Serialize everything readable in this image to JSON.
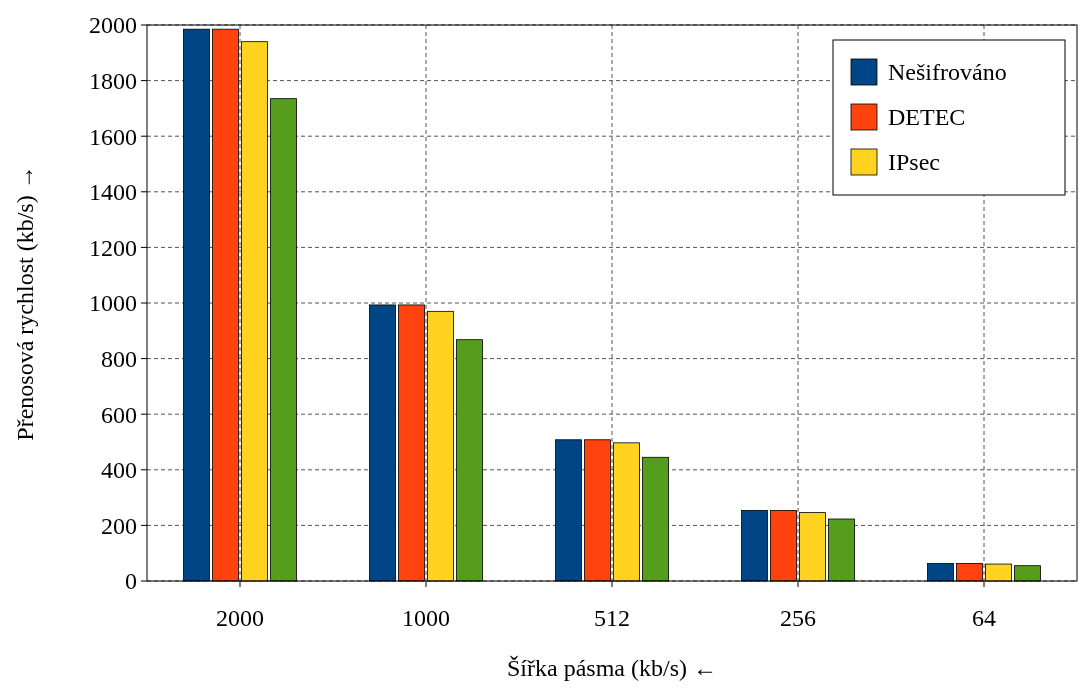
{
  "chart_data": {
    "type": "bar",
    "xlabel": "Šířka pásma (kb/s) ←",
    "ylabel": "Přenosová rychlost (kb/s) →",
    "categories": [
      "2000",
      "1000",
      "512",
      "256",
      "64"
    ],
    "series": [
      {
        "name": "Nešifrováno",
        "color": "#004586",
        "values": [
          1985,
          993,
          508,
          254,
          63
        ]
      },
      {
        "name": "DETEC",
        "color": "#ff420e",
        "values": [
          1985,
          993,
          508,
          254,
          63
        ]
      },
      {
        "name": "IPsec",
        "color": "#ffd320",
        "values": [
          1940,
          970,
          497,
          246,
          61
        ]
      },
      {
        "color": "#579d1c",
        "values": [
          1735,
          868,
          445,
          223,
          55
        ]
      }
    ],
    "ylim": [
      0,
      2000
    ],
    "yticks": [
      0,
      200,
      400,
      600,
      800,
      1000,
      1200,
      1400,
      1600,
      1800,
      2000
    ],
    "grid": true,
    "legend": "top right"
  }
}
